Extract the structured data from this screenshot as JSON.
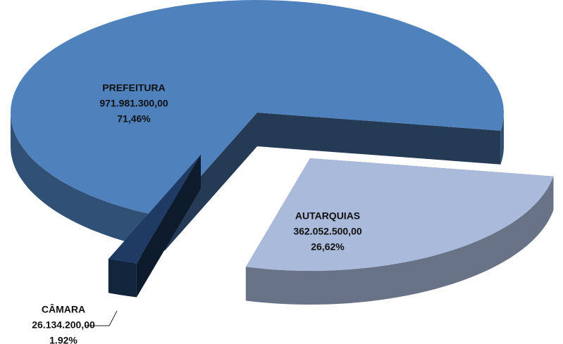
{
  "chart_data": {
    "type": "pie3d",
    "categories": [
      "PREFEITURA",
      "AUTARQUIAS",
      "CÂMARA"
    ],
    "values": [
      971981300.0,
      362052500.0,
      26134200.0
    ],
    "value_labels": [
      "971.981.300,00",
      "362.052.500,00",
      "26.134.200,00"
    ],
    "percentages": [
      71.46,
      26.62,
      1.92
    ],
    "percentage_labels": [
      "71,46%",
      "26,62%",
      "1.92%"
    ],
    "colors": [
      "#4f81bd",
      "#a9badb",
      "#1f3b63"
    ]
  }
}
